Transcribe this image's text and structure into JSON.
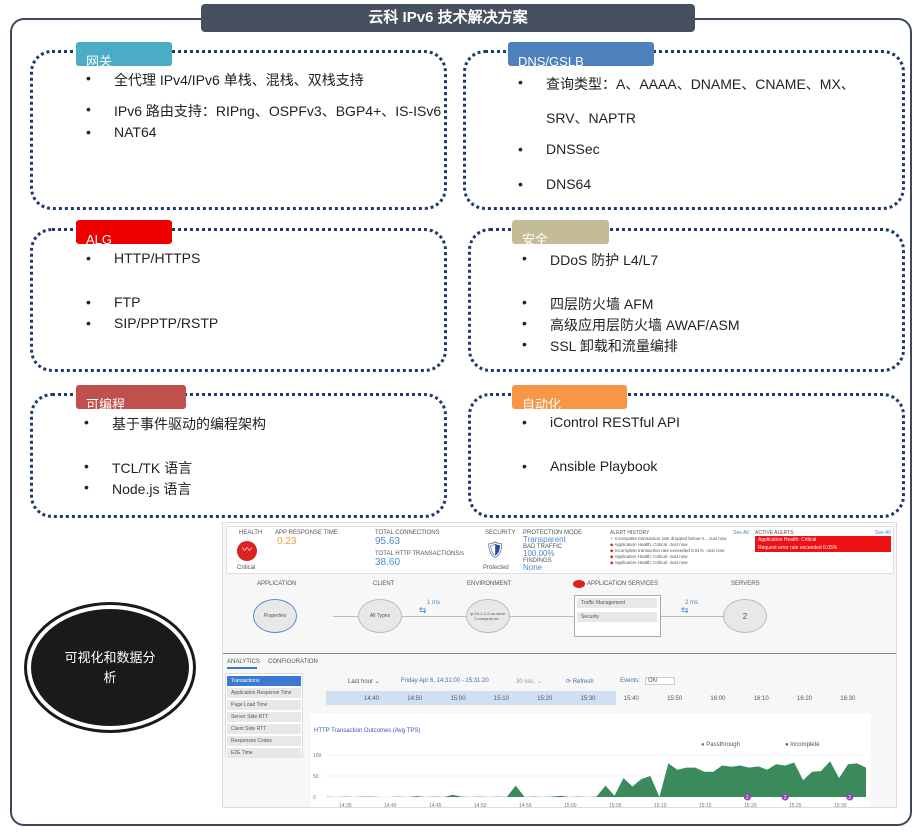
{
  "title": "云科 IPv6 技术解决方案",
  "sections": [
    {
      "tag": "网关",
      "color": "#4bacc6",
      "items": [
        "全代理 IPv4/IPv6 单栈、混栈、双栈支持",
        "IPv6 路由支持：RIPng、OSPFv3、BGP4+、IS-ISv6",
        "NAT64"
      ]
    },
    {
      "tag": "DNS/GSLB",
      "color": "#4f81bd",
      "items": [
        "查询类型：A、AAAA、DNAME、CNAME、MX、",
        "SRV、NAPTR",
        "DNSSec",
        "DNS64"
      ]
    },
    {
      "tag": "ALG",
      "color": "#ee0000",
      "items": [
        "HTTP/HTTPS",
        "FTP",
        "SIP/PPTP/RSTP"
      ]
    },
    {
      "tag": "安全",
      "color": "#c4bc96",
      "items": [
        "DDoS 防护 L4/L7",
        "四层防火墙 AFM",
        "高级应用层防火墙 AWAF/ASM",
        "SSL 卸载和流量编排"
      ]
    },
    {
      "tag": "可编程",
      "color": "#c0504d",
      "items": [
        "基于事件驱动的编程架构",
        "TCL/TK 语言",
        "Node.js 语言"
      ]
    },
    {
      "tag": "自动化",
      "color": "#f79646",
      "items": [
        "iControl RESTful API",
        "Ansible Playbook"
      ]
    }
  ],
  "bullet": "•",
  "circle_label": "可视化和数据分析",
  "dashboard": {
    "health": "HEALTH",
    "health_status": "Critical",
    "app_response_label": "APP RESPONSE TIME",
    "app_response": "0.23",
    "total_conn_label": "TOTAL CONNECTIONS",
    "total_conn": "95.63",
    "total_http_label": "TOTAL HTTP TRANSACTIONS/s",
    "total_http": "38.60",
    "security_label": "SECURITY",
    "security_status": "Protected",
    "protection_mode_label": "PROTECTION MODE",
    "protection_mode": "Transparent",
    "bad_traffic_label": "BAD TRAFFIC",
    "bad_traffic": "100.00%",
    "findings_label": "FINDINGS",
    "findings": "None",
    "alert_history_label": "ALERT HISTORY",
    "see_all": "See All",
    "alert_history": [
      "Incomplete transaction rate dropped below 0... Just now",
      "Application Health: Critical -Just now",
      "Incomplete transaction rate exceeded 0.01% -Just now",
      "Application Health: Critical -Just now",
      "Application Health: Critical -Just now"
    ],
    "active_alerts_label": "ACTIVE ALERTS",
    "active_alerts": [
      "Application Health: Critical",
      "Request error rate exceeded 0.05%"
    ],
    "flow": {
      "application": "APPLICATION",
      "properties": "Properties",
      "client": "CLIENT",
      "all_types": "All Types",
      "environment": "ENVIRONMENT",
      "env_node": "ip-10-1-1-9.us-west-2.compute.int...",
      "app_services": "APPLICATION SERVICES",
      "traffic_mgmt": "Traffic Management",
      "security": "Security",
      "servers": "SERVERS",
      "servers_count": "2",
      "latency1": "1 ms",
      "latency2": "2 ms"
    },
    "tabs": [
      "ANALYTICS",
      "CONFIGURATION"
    ],
    "menu": [
      "Transactions",
      "Application Response Time",
      "Page Load Time",
      "Server Side RTT",
      "Client Side RTT",
      "Responses Codes",
      "E2E Time"
    ],
    "toolbar": {
      "range": "Last hour ⌄",
      "period": "Friday Apr 6, 14:31:00 - 15:31:20",
      "interval": "30 sec. ⌄",
      "refresh": "⟳ Refresh",
      "events": "Events:",
      "events_state": "ON"
    },
    "timeline": [
      "14:40",
      "14:50",
      "15:00",
      "15:10",
      "15:20",
      "15:30",
      "15:40",
      "15:50",
      "16:00",
      "16:10",
      "16:20",
      "16:30"
    ],
    "chart_data": {
      "type": "area",
      "title": "HTTP Transaction Outcomes (Avg TPS)",
      "legend": [
        "Passthrough",
        "Incomplete"
      ],
      "series_color": "#3a8a5c",
      "ylim": [
        0,
        100
      ],
      "yticks": [
        "100",
        "50",
        "0"
      ],
      "xticks": [
        "14:35",
        "14:40",
        "14:45",
        "14:50",
        "14:55",
        "15:00",
        "15:05",
        "15:10",
        "15:15",
        "15:20",
        "15:25",
        "15:30"
      ],
      "values": [
        1,
        0,
        1,
        0,
        1,
        1,
        0,
        0,
        1,
        0,
        2,
        0,
        1,
        0,
        5,
        1,
        0,
        1,
        0,
        1,
        0,
        27,
        0,
        1,
        0,
        1,
        3,
        0,
        1,
        0,
        1,
        27,
        3,
        45,
        25,
        43,
        50,
        0,
        80,
        65,
        70,
        70,
        60,
        60,
        75,
        72,
        75,
        70,
        73,
        65,
        78,
        75,
        82,
        40,
        60,
        62,
        85,
        45,
        78,
        80,
        70
      ],
      "event_markers": [
        "2",
        "2",
        "2"
      ]
    }
  }
}
